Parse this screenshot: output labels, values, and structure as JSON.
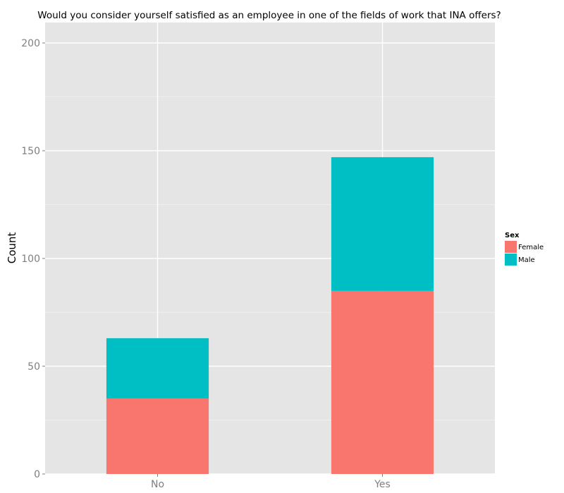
{
  "chart_data": {
    "type": "bar",
    "stacked": true,
    "title": "Would you consider yourself satisfied as an employee in one of the fields of work that INA offers?",
    "xlabel": "",
    "ylabel": "Count",
    "categories": [
      "No",
      "Yes"
    ],
    "series": [
      {
        "name": "Female",
        "values": [
          35,
          85
        ],
        "color": "#F8766D"
      },
      {
        "name": "Male",
        "values": [
          28,
          62
        ],
        "color": "#00BFC4"
      }
    ],
    "ylim": [
      0,
      210
    ],
    "yticks": [
      0,
      50,
      100,
      150,
      200
    ],
    "grid": true,
    "legend": {
      "title": "Sex",
      "position": "right"
    },
    "panel_color": "#E5E5E5"
  }
}
